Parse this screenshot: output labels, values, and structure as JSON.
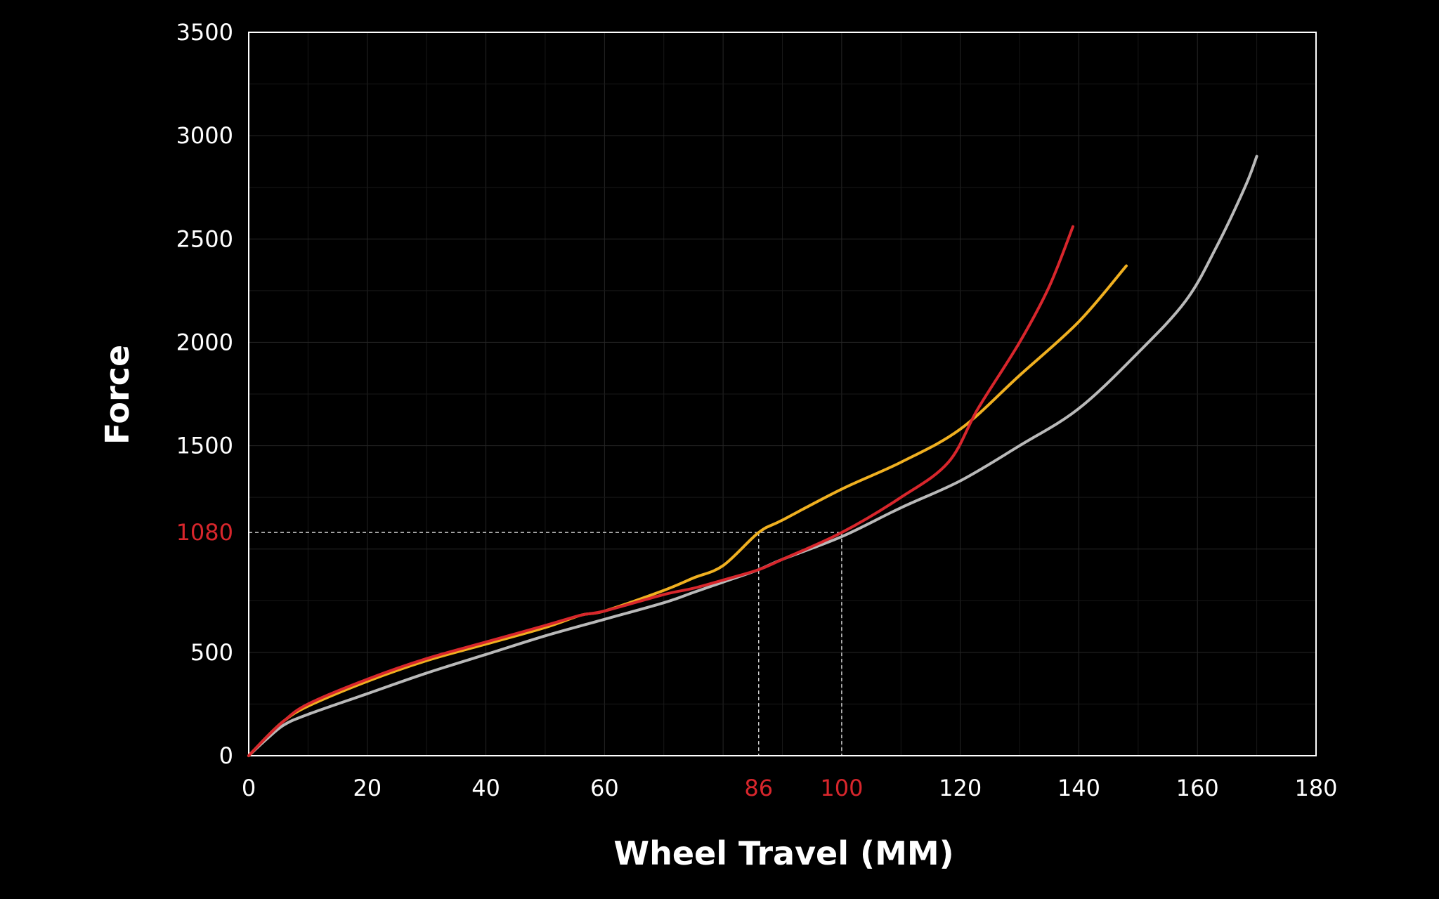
{
  "chart_data": {
    "type": "line",
    "title": "",
    "xlabel": "Wheel Travel (MM)",
    "ylabel": "Force",
    "xlim": [
      0,
      180
    ],
    "ylim": [
      0,
      3500
    ],
    "x_ticks": [
      {
        "value": 0,
        "label": "0"
      },
      {
        "value": 20,
        "label": "20"
      },
      {
        "value": 40,
        "label": "40"
      },
      {
        "value": 60,
        "label": "60"
      },
      {
        "value": 86,
        "label": "86",
        "highlight": true
      },
      {
        "value": 100,
        "label": "100",
        "highlight": true
      },
      {
        "value": 120,
        "label": "120"
      },
      {
        "value": 140,
        "label": "140"
      },
      {
        "value": 160,
        "label": "160"
      },
      {
        "value": 180,
        "label": "180"
      }
    ],
    "y_ticks": [
      {
        "value": 0,
        "label": "0"
      },
      {
        "value": 500,
        "label": "500"
      },
      {
        "value": 1080,
        "label": "1080",
        "highlight": true
      },
      {
        "value": 1500,
        "label": "1500"
      },
      {
        "value": 2000,
        "label": "2000"
      },
      {
        "value": 2500,
        "label": "2500"
      },
      {
        "value": 3000,
        "label": "3000"
      },
      {
        "value": 3500,
        "label": "3500"
      }
    ],
    "grid": true,
    "legend": "none",
    "reference_lines": [
      {
        "x": 86,
        "y": 1080
      },
      {
        "x": 100,
        "y": 1080
      }
    ],
    "colors": {
      "background": "#000000",
      "axis": "#ffffff",
      "text": "#ffffff",
      "highlight_text": "#d8262c",
      "grid": "#2a2a2a",
      "reference": "#cccccc"
    },
    "series": [
      {
        "color": "#b9b9b9",
        "x": [
          0,
          3,
          6,
          10,
          20,
          30,
          40,
          50,
          60,
          70,
          75,
          80,
          86,
          90,
          100,
          110,
          120,
          130,
          140,
          150,
          158,
          163,
          168,
          170
        ],
        "y": [
          0,
          80,
          150,
          200,
          300,
          400,
          490,
          580,
          660,
          740,
          790,
          840,
          900,
          950,
          1060,
          1200,
          1330,
          1500,
          1680,
          1950,
          2200,
          2450,
          2750,
          2900
        ]
      },
      {
        "color": "#f0b020",
        "x": [
          0,
          3,
          6,
          10,
          20,
          30,
          40,
          50,
          56,
          60,
          70,
          75,
          80,
          86,
          90,
          100,
          110,
          120,
          130,
          140,
          148
        ],
        "y": [
          0,
          90,
          170,
          240,
          360,
          460,
          540,
          620,
          680,
          700,
          800,
          860,
          920,
          1080,
          1140,
          1290,
          1420,
          1580,
          1840,
          2100,
          2370
        ]
      },
      {
        "color": "#d8262c",
        "x": [
          0,
          3,
          6,
          10,
          20,
          30,
          40,
          50,
          56,
          60,
          70,
          75,
          80,
          86,
          90,
          100,
          110,
          118,
          123,
          130,
          135,
          139
        ],
        "y": [
          0,
          90,
          170,
          250,
          370,
          470,
          550,
          630,
          680,
          700,
          780,
          810,
          850,
          900,
          950,
          1080,
          1250,
          1420,
          1680,
          2000,
          2270,
          2560
        ]
      }
    ]
  }
}
